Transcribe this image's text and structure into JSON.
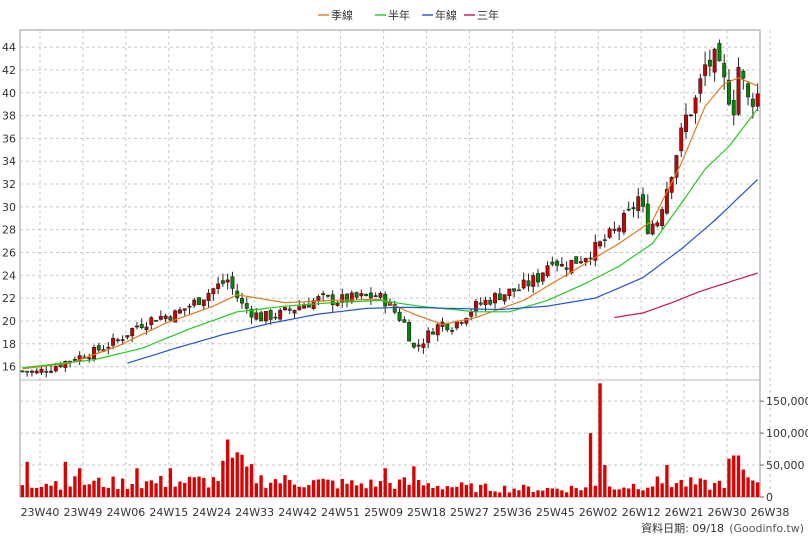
{
  "chart_data": {
    "type": "candlestick",
    "legend": [
      {
        "name": "季線",
        "color": "#e07a1f"
      },
      {
        "name": "半年",
        "color": "#22cc22"
      },
      {
        "name": "年線",
        "color": "#2255cc"
      },
      {
        "name": "三年",
        "color": "#cc1155"
      }
    ],
    "price_axis": {
      "ticks": [
        16,
        18,
        20,
        22,
        24,
        26,
        28,
        30,
        32,
        34,
        36,
        38,
        40,
        42,
        44
      ],
      "min": 15,
      "max": 45.5
    },
    "volume_axis": {
      "ticks": [
        0,
        50000,
        100000,
        150000
      ],
      "tick_labels": [
        "0",
        "50,000",
        "100,000",
        "150,000"
      ],
      "min": 0,
      "max": 180000
    },
    "x_tick_labels": [
      "23W40",
      "23W49",
      "24W06",
      "24W15",
      "24W24",
      "24W33",
      "24W42",
      "24W51",
      "25W09",
      "25W18",
      "25W27",
      "25W36",
      "25W45",
      "26W02",
      "26W12",
      "26W21",
      "26W30",
      "26W38"
    ],
    "footer_date_label": "資料日期: 09/18",
    "footer_source_label": "(Goodinfo.tw)",
    "weeks": 155,
    "price_anchors": [
      [
        0,
        15.6
      ],
      [
        3,
        15.5
      ],
      [
        6,
        15.9
      ],
      [
        10,
        16.6
      ],
      [
        15,
        17.3
      ],
      [
        20,
        18.3
      ],
      [
        24,
        19.6
      ],
      [
        28,
        20.3
      ],
      [
        32,
        20.6
      ],
      [
        36,
        21.6
      ],
      [
        40,
        22.8
      ],
      [
        43,
        23.6
      ],
      [
        44,
        22.8
      ],
      [
        46,
        21.4
      ],
      [
        48,
        20.8
      ],
      [
        50,
        20.3
      ],
      [
        54,
        20.6
      ],
      [
        58,
        21.3
      ],
      [
        62,
        21.9
      ],
      [
        66,
        21.8
      ],
      [
        70,
        22.0
      ],
      [
        74,
        22.2
      ],
      [
        76,
        21.8
      ],
      [
        78,
        20.8
      ],
      [
        80,
        19.8
      ],
      [
        82,
        17.6
      ],
      [
        84,
        18.3
      ],
      [
        86,
        19.3
      ],
      [
        88,
        19.8
      ],
      [
        90,
        19.6
      ],
      [
        92,
        20.3
      ],
      [
        95,
        21.3
      ],
      [
        100,
        22.3
      ],
      [
        104,
        22.8
      ],
      [
        108,
        23.8
      ],
      [
        111,
        25.6
      ],
      [
        113,
        24.8
      ],
      [
        116,
        25.3
      ],
      [
        120,
        26.3
      ],
      [
        124,
        27.8
      ],
      [
        127,
        29.3
      ],
      [
        129,
        30.8
      ],
      [
        131,
        28.3
      ],
      [
        133,
        28.8
      ],
      [
        135,
        31.8
      ],
      [
        137,
        34.8
      ],
      [
        139,
        37.8
      ],
      [
        141,
        39.3
      ],
      [
        143,
        42.3
      ],
      [
        145,
        42.8
      ],
      [
        147,
        40.8
      ],
      [
        149,
        38.8
      ],
      [
        150,
        42.3
      ],
      [
        152,
        39.3
      ],
      [
        154,
        39.8
      ]
    ],
    "ma": {
      "季線": [
        [
          0,
          15.8
        ],
        [
          10,
          16.3
        ],
        [
          20,
          17.8
        ],
        [
          30,
          19.8
        ],
        [
          40,
          21.3
        ],
        [
          45,
          22.3
        ],
        [
          55,
          21.6
        ],
        [
          65,
          21.8
        ],
        [
          75,
          21.9
        ],
        [
          82,
          20.6
        ],
        [
          88,
          19.7
        ],
        [
          95,
          20.3
        ],
        [
          105,
          21.8
        ],
        [
          115,
          24.3
        ],
        [
          125,
          26.8
        ],
        [
          132,
          28.8
        ],
        [
          138,
          33.8
        ],
        [
          143,
          38.8
        ],
        [
          147,
          40.8
        ],
        [
          150,
          41.3
        ],
        [
          154,
          40.6
        ]
      ],
      "半年": [
        [
          0,
          15.9
        ],
        [
          15,
          16.6
        ],
        [
          25,
          17.6
        ],
        [
          35,
          19.3
        ],
        [
          45,
          20.8
        ],
        [
          55,
          21.3
        ],
        [
          65,
          21.6
        ],
        [
          75,
          21.8
        ],
        [
          83,
          21.3
        ],
        [
          95,
          20.8
        ],
        [
          102,
          20.8
        ],
        [
          110,
          21.8
        ],
        [
          118,
          23.3
        ],
        [
          125,
          24.8
        ],
        [
          132,
          26.8
        ],
        [
          138,
          30.3
        ],
        [
          143,
          33.3
        ],
        [
          148,
          35.3
        ],
        [
          154,
          38.6
        ]
      ],
      "年線": [
        [
          22,
          16.3
        ],
        [
          32,
          17.6
        ],
        [
          42,
          18.8
        ],
        [
          52,
          19.8
        ],
        [
          62,
          20.6
        ],
        [
          72,
          21.1
        ],
        [
          80,
          21.2
        ],
        [
          90,
          21.1
        ],
        [
          100,
          21.0
        ],
        [
          110,
          21.3
        ],
        [
          120,
          22.0
        ],
        [
          130,
          23.8
        ],
        [
          138,
          26.3
        ],
        [
          145,
          28.8
        ],
        [
          150,
          30.8
        ],
        [
          154,
          32.4
        ]
      ],
      "三年": [
        [
          124,
          20.3
        ],
        [
          130,
          20.7
        ],
        [
          136,
          21.6
        ],
        [
          142,
          22.6
        ],
        [
          148,
          23.4
        ],
        [
          154,
          24.2
        ]
      ]
    }
  }
}
